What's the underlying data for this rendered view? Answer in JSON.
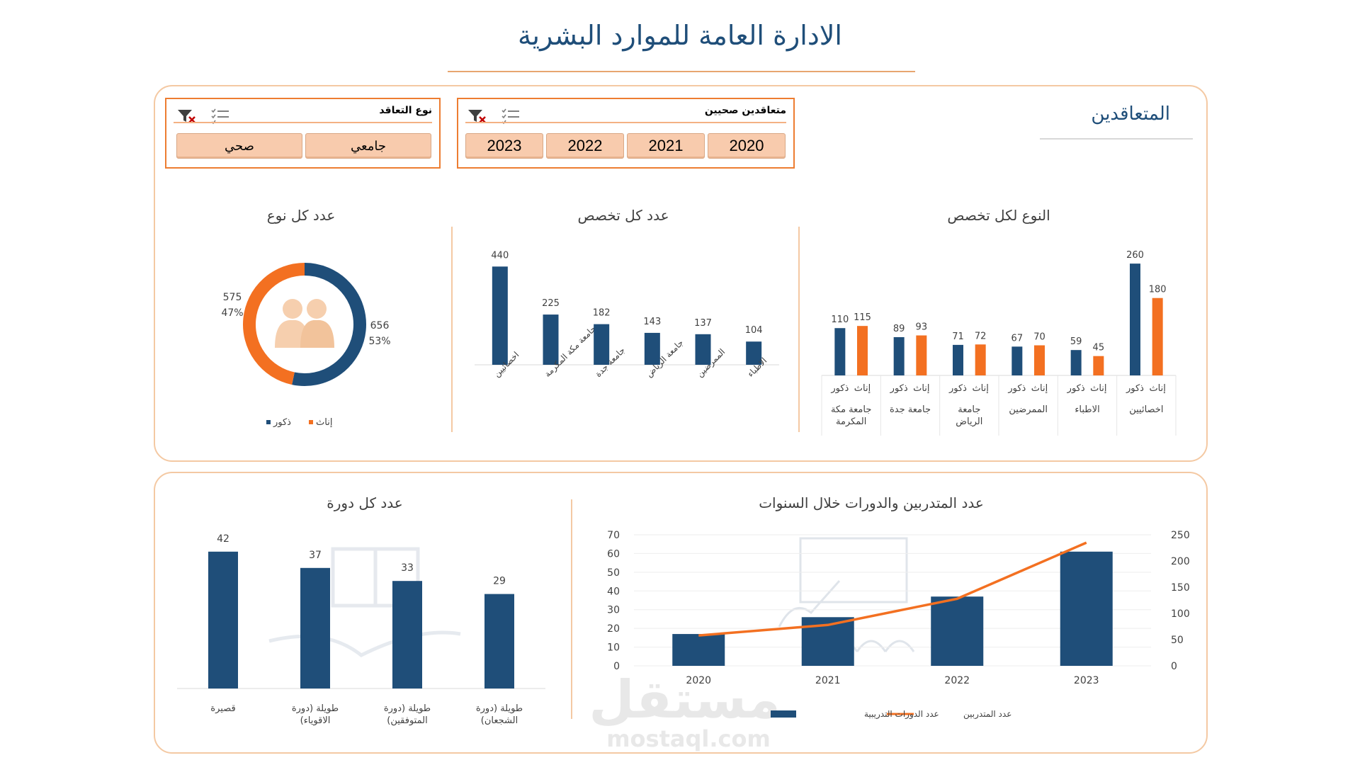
{
  "page": {
    "title": "الادارة العامة للموارد البشرية",
    "section_title": "المتعاقدين"
  },
  "slicers": {
    "years": {
      "title": "متعاقدين صحيين",
      "items": [
        "2020",
        "2021",
        "2022",
        "2023"
      ]
    },
    "contract_type": {
      "title": "نوع التعاقد",
      "items": [
        "جامعي",
        "صحي"
      ]
    }
  },
  "colors": {
    "navy": "#1f4e79",
    "orange": "#f37021",
    "accent": "#ed7d31",
    "panel_border": "#f4c9a3"
  },
  "icons": {
    "filter_clear": "filter-clear-icon",
    "multi_select": "multi-select-icon",
    "people": "people-icon"
  },
  "watermark": {
    "text": "مستقل",
    "url": "mostaql.com"
  },
  "chart_data": [
    {
      "id": "gender-by-specialty",
      "type": "bar",
      "title": "النوع لكل تخصص",
      "categories": [
        "جامعة مكة المكرمة",
        "جامعة جدة",
        "جامعة الرياض",
        "الممرضين",
        "الاطباء",
        "اخصائيين"
      ],
      "subcategories": [
        "ذكور",
        "إناث"
      ],
      "series": [
        {
          "name": "ذكور",
          "color": "#1f4e79",
          "values": [
            110,
            89,
            71,
            67,
            59,
            260
          ]
        },
        {
          "name": "إناث",
          "color": "#f37021",
          "values": [
            115,
            93,
            72,
            70,
            45,
            180
          ]
        }
      ],
      "ylim": [
        0,
        280
      ]
    },
    {
      "id": "count-by-specialty",
      "type": "bar",
      "title": "عدد كل تخصص",
      "categories": [
        "اخصائيين",
        "جامعة مكة المكرمة",
        "جامعة جدة",
        "جامعة الرياض",
        "الممرضين",
        "الاطباء"
      ],
      "values": [
        440,
        225,
        182,
        143,
        137,
        104
      ],
      "ylim": [
        0,
        460
      ]
    },
    {
      "id": "count-by-gender",
      "type": "pie",
      "title": "عدد كل نوع",
      "slices": [
        {
          "name": "ذكور",
          "value": 656,
          "percent": "53%",
          "color": "#1f4e79"
        },
        {
          "name": "إناث",
          "value": 575,
          "percent": "47%",
          "color": "#f37021"
        }
      ],
      "legend": [
        "ذكور",
        "إناث"
      ],
      "legend_position": "bottom"
    },
    {
      "id": "trainees-courses-years",
      "type": "bar",
      "title": "عدد المتدربين والدورات خلال السنوات",
      "categories": [
        "2020",
        "2021",
        "2022",
        "2023"
      ],
      "series": [
        {
          "name": "عدد الدورات التدريبية",
          "type": "bar",
          "axis": "left",
          "color": "#1f4e79",
          "values": [
            17,
            26,
            37,
            61
          ]
        },
        {
          "name": "عدد المتدربين",
          "type": "line",
          "axis": "right",
          "color": "#f37021",
          "values": [
            58,
            78,
            128,
            235
          ]
        }
      ],
      "y_left": {
        "ticks": [
          0,
          10,
          20,
          30,
          40,
          50,
          60,
          70
        ],
        "ylim": [
          0,
          70
        ]
      },
      "y_right": {
        "ticks": [
          0,
          50,
          100,
          150,
          200,
          250
        ],
        "ylim": [
          0,
          250
        ]
      },
      "grid": true,
      "legend_position": "bottom"
    },
    {
      "id": "count-by-course",
      "type": "bar",
      "title": "عدد كل دورة",
      "categories": [
        "قصيرة",
        "طويلة (دورة الاقوياء)",
        "طويلة (دورة المتوفقين)",
        "طويلة (دورة الشجعان)"
      ],
      "values": [
        42,
        37,
        33,
        29
      ],
      "ylim": [
        0,
        45
      ]
    }
  ]
}
